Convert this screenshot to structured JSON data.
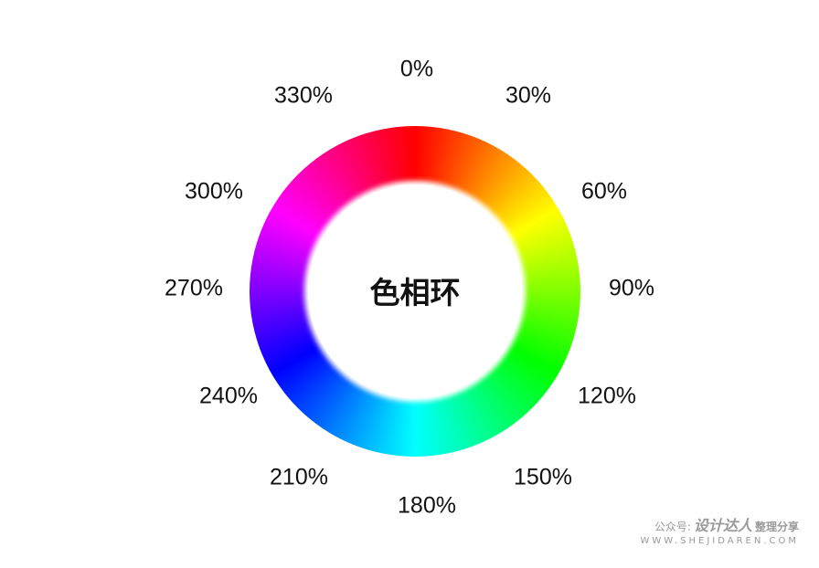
{
  "diagram": {
    "center_label": "色相环",
    "hue_labels": [
      {
        "hue_deg": 0,
        "text": "0%"
      },
      {
        "hue_deg": 30,
        "text": "30%"
      },
      {
        "hue_deg": 60,
        "text": "60%"
      },
      {
        "hue_deg": 90,
        "text": "90%"
      },
      {
        "hue_deg": 120,
        "text": "120%"
      },
      {
        "hue_deg": 150,
        "text": "150%"
      },
      {
        "hue_deg": 180,
        "text": "180%"
      },
      {
        "hue_deg": 210,
        "text": "210%"
      },
      {
        "hue_deg": 240,
        "text": "240%"
      },
      {
        "hue_deg": 270,
        "text": "270%"
      },
      {
        "hue_deg": 300,
        "text": "300%"
      },
      {
        "hue_deg": 330,
        "text": "330%"
      }
    ],
    "ring_colors": [
      "#ff0000",
      "#ff8000",
      "#ffff00",
      "#80ff00",
      "#00ff00",
      "#00ff80",
      "#00ffff",
      "#0080ff",
      "#0000ff",
      "#8000ff",
      "#ff00ff",
      "#ff0080"
    ]
  },
  "watermark": {
    "prefix": "公众号:",
    "brand": "设计达人",
    "suffix": "整理分享",
    "url": "WWW.SHEJIDAREN.COM"
  }
}
